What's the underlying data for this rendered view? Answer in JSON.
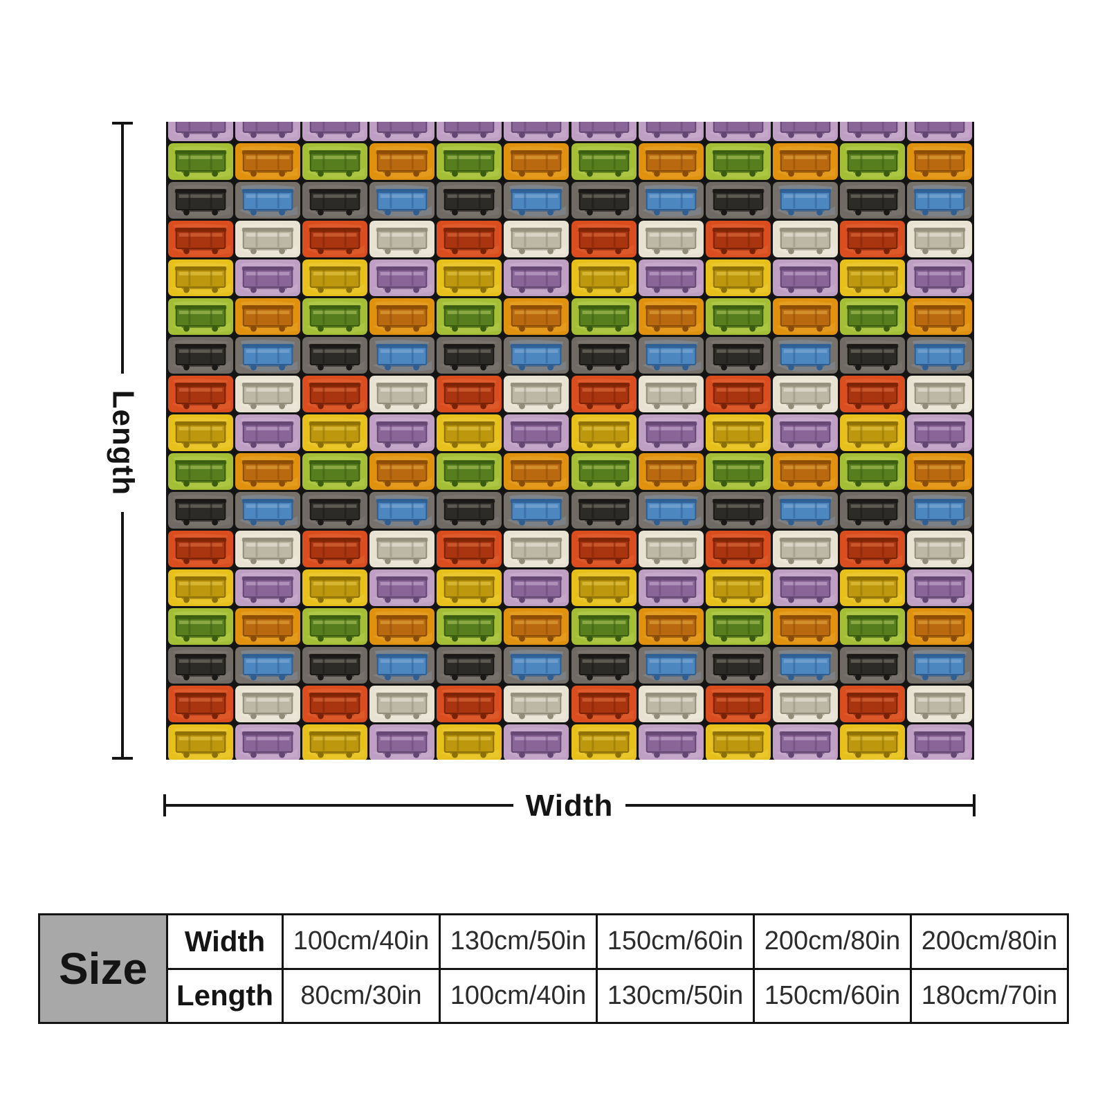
{
  "blanket": {
    "columns": 12,
    "grid_line_color": "#141414",
    "tile_types": {
      "green": {
        "bg": "#a4bf35",
        "body": "#567d1e",
        "dark": "#3a5c10",
        "light": "#c8dc72"
      },
      "orange": {
        "bg": "#e0920f",
        "body": "#b96a10",
        "dark": "#8a4c06",
        "light": "#f2b852"
      },
      "darkgray": {
        "bg": "#6f6a64",
        "body": "#2d2b28",
        "dark": "#191816",
        "light": "#948d82"
      },
      "blue": {
        "bg": "#77716b",
        "body": "#4d87c0",
        "dark": "#2e5e92",
        "light": "#93b8de"
      },
      "red": {
        "bg": "#d94d1e",
        "body": "#a93510",
        "dark": "#7a2206",
        "light": "#ec7f52"
      },
      "cream": {
        "bg": "#e7e2d2",
        "body": "#bdb8a6",
        "dark": "#928d7b",
        "light": "#f8f5ec"
      },
      "yellow": {
        "bg": "#e7c01c",
        "body": "#bd980e",
        "dark": "#8c6f05",
        "light": "#f3da60"
      },
      "lavender": {
        "bg": "#bf9fc4",
        "body": "#8a6597",
        "dark": "#644672",
        "light": "#d9c4dd"
      }
    },
    "row_pattern": [
      [
        "lavender",
        "lavender"
      ],
      [
        "green",
        "orange"
      ],
      [
        "darkgray",
        "blue"
      ],
      [
        "red",
        "cream"
      ],
      [
        "yellow",
        "lavender"
      ],
      [
        "green",
        "orange"
      ],
      [
        "darkgray",
        "blue"
      ],
      [
        "red",
        "cream"
      ],
      [
        "yellow",
        "lavender"
      ],
      [
        "green",
        "orange"
      ],
      [
        "darkgray",
        "blue"
      ],
      [
        "red",
        "cream"
      ],
      [
        "yellow",
        "lavender"
      ],
      [
        "green",
        "orange"
      ],
      [
        "darkgray",
        "blue"
      ],
      [
        "red",
        "cream"
      ],
      [
        "yellow",
        "lavender"
      ]
    ]
  },
  "dimensions": {
    "length_label": "Length",
    "width_label": "Width"
  },
  "size_table": {
    "title": "Size",
    "header_bg_color": "#a8a8a8",
    "rows": [
      {
        "label": "Width",
        "values": [
          "100cm/40in",
          "130cm/50in",
          "150cm/60in",
          "200cm/80in",
          "200cm/80in"
        ]
      },
      {
        "label": "Length",
        "values": [
          "80cm/30in",
          "100cm/40in",
          "130cm/50in",
          "150cm/60in",
          "180cm/70in"
        ]
      }
    ]
  }
}
